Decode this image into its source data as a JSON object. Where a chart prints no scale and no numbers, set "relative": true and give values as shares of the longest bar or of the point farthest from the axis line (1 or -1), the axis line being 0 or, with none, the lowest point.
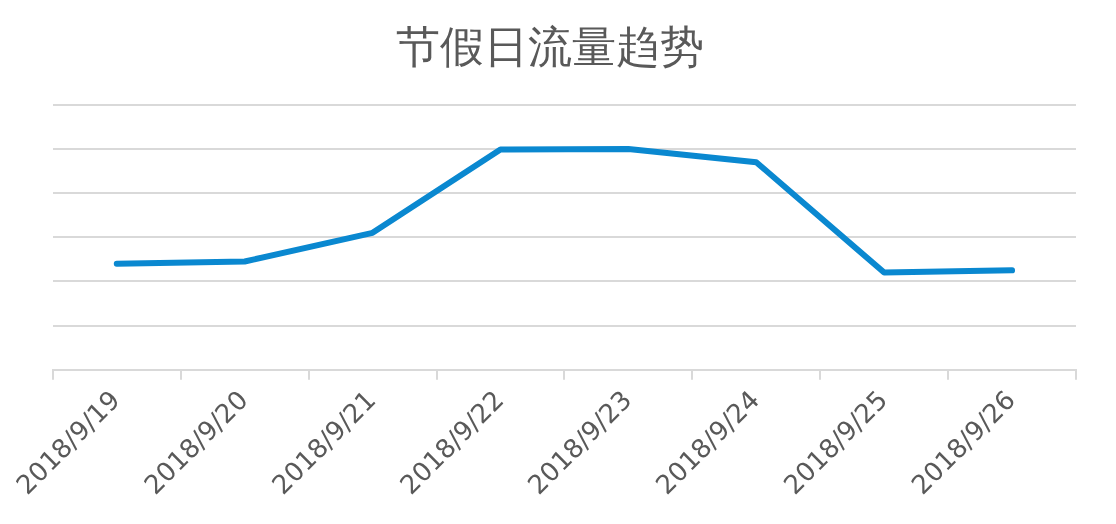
{
  "chart_data": {
    "type": "line",
    "title": "节假日流量趋势",
    "categories": [
      "2018/9/19",
      "2018/9/20",
      "2018/9/21",
      "2018/9/22",
      "2018/9/23",
      "2018/9/24",
      "2018/9/25",
      "2018/9/26"
    ],
    "series": [
      {
        "color": "#0a88d0",
        "values": [
          0.48,
          0.49,
          0.62,
          0.997,
          1,
          0.94,
          0.44,
          0.45
        ]
      }
    ],
    "relative": true,
    "grid": "y",
    "legend": false,
    "marker": "none",
    "line_style": "solid"
  }
}
